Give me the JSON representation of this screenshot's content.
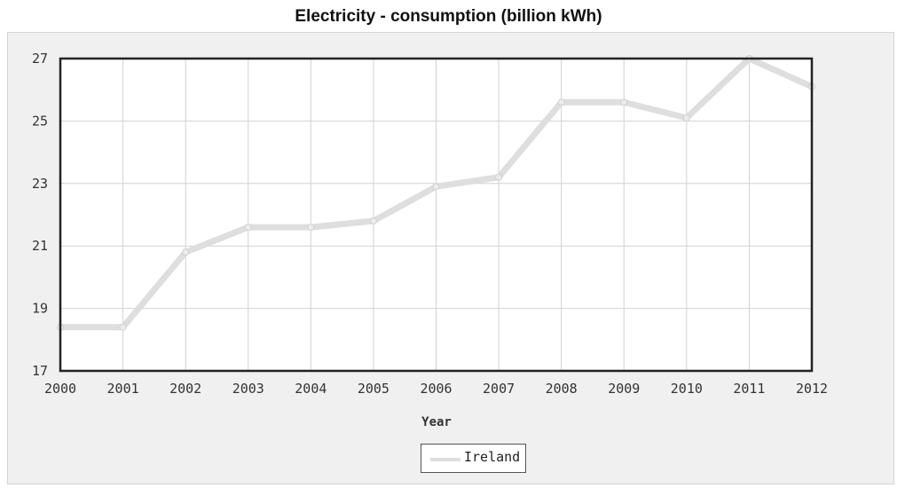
{
  "chart_data": {
    "type": "line",
    "title": "Electricity - consumption (billion kWh)",
    "xlabel": "Year",
    "ylabel": "",
    "x": [
      "2000",
      "2001",
      "2002",
      "2003",
      "2004",
      "2005",
      "2006",
      "2007",
      "2008",
      "2009",
      "2010",
      "2011",
      "2012"
    ],
    "ylim": [
      17,
      27
    ],
    "yticks": [
      17,
      19,
      21,
      23,
      25,
      27
    ],
    "grid": true,
    "legend_position": "bottom-center",
    "series": [
      {
        "name": "Ireland",
        "color": "#dedede",
        "values": [
          18.4,
          18.4,
          20.8,
          21.6,
          21.6,
          21.8,
          22.9,
          23.2,
          25.6,
          25.6,
          25.1,
          27.0,
          26.1
        ]
      }
    ]
  }
}
